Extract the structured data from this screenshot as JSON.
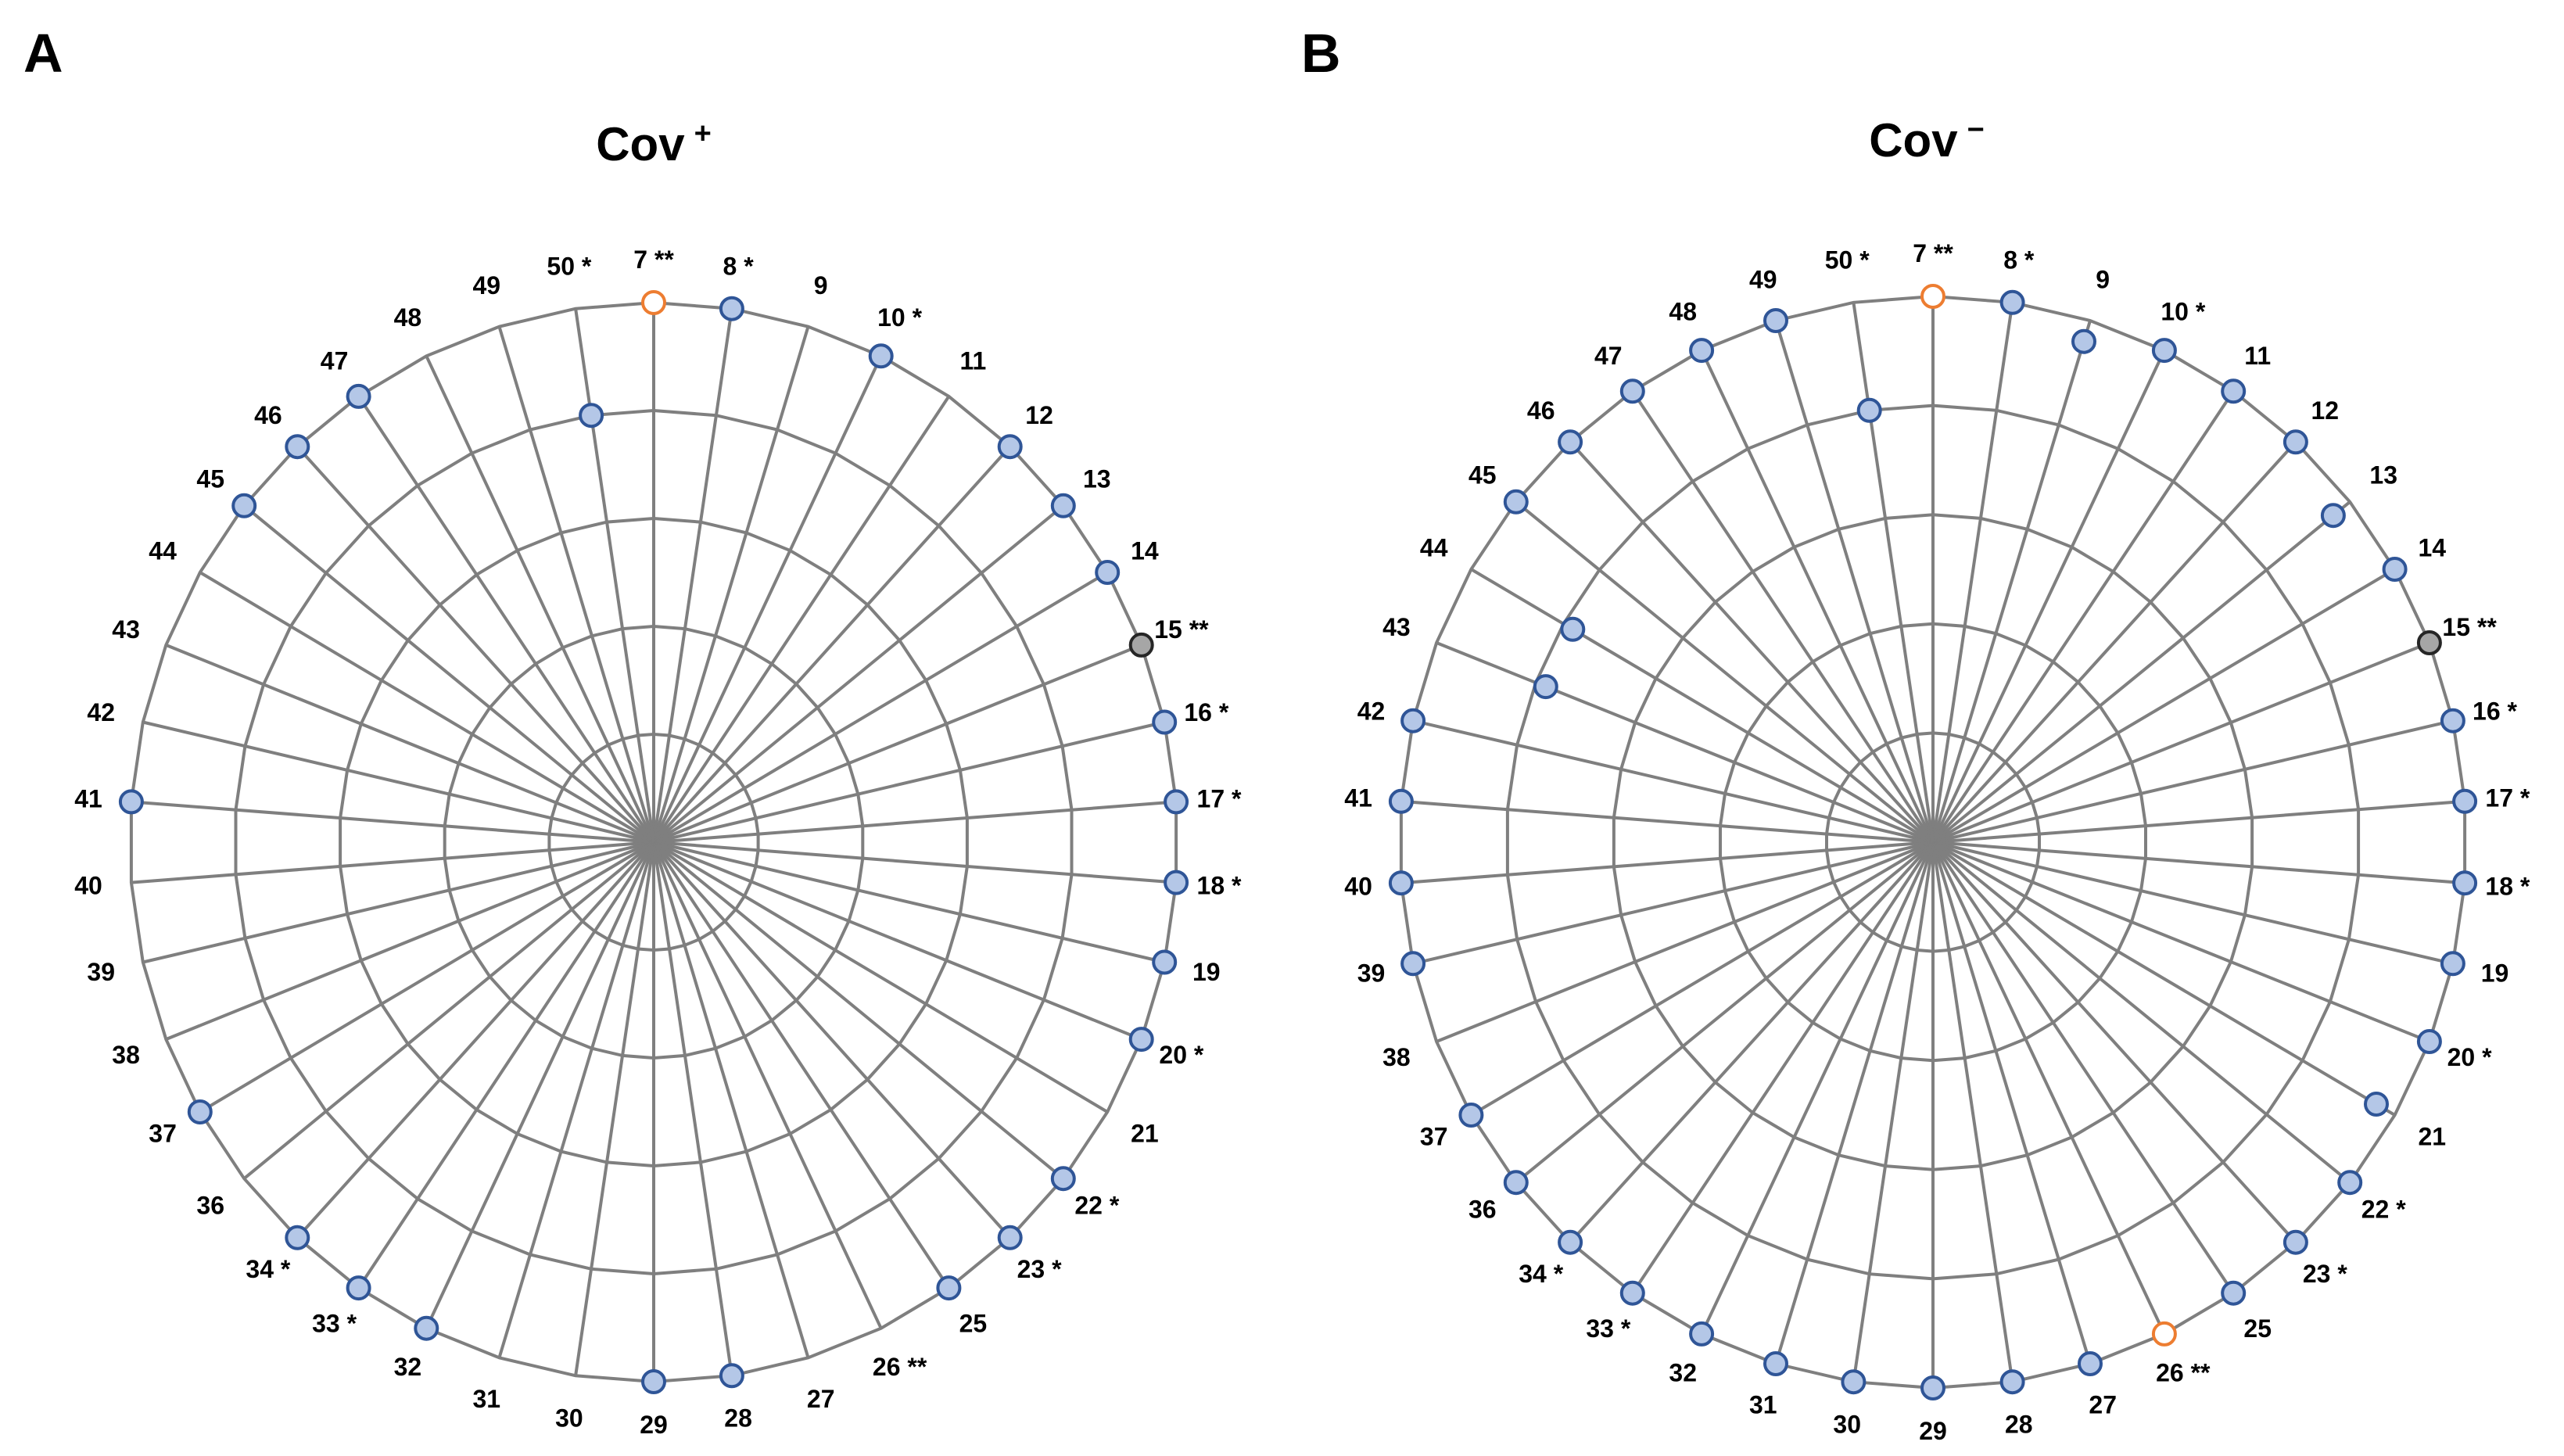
{
  "colors": {
    "grid": "#7f7f7f",
    "blue_fill": "#b4c7e7",
    "blue_stroke": "#2f5597",
    "orange_fill": "#ffffff",
    "orange_stroke": "#ed7d31",
    "gray_fill": "#a6a6a6",
    "gray_stroke": "#262626"
  },
  "chart_data": [
    {
      "type": "radar",
      "panel": "A",
      "title": "Cov",
      "title_sup": "+",
      "axis_order_clockwise_from_top": [
        "7",
        "8",
        "9",
        "10",
        "11",
        "12",
        "13",
        "14",
        "15",
        "16",
        "17",
        "18",
        "19",
        "20",
        "21",
        "22",
        "23",
        "25",
        "26",
        "27",
        "28",
        "29",
        "30",
        "31",
        "32",
        "33",
        "34",
        "36",
        "37",
        "38",
        "39",
        "40",
        "41",
        "42",
        "43",
        "44",
        "45",
        "46",
        "47",
        "48",
        "49",
        "50"
      ],
      "axis_labels": [
        "7 **",
        "8 *",
        "9",
        "10 *",
        "11",
        "12",
        "13",
        "14",
        "15 **",
        "16 *",
        "17 *",
        "18 *",
        "19",
        "20 *",
        "21",
        "22 *",
        "23 *",
        "25",
        "26 **",
        "27",
        "28",
        "29",
        "30",
        "31",
        "32",
        "33 *",
        "34 *",
        "36",
        "37",
        "38",
        "39",
        "40",
        "41",
        "42",
        "43",
        "44",
        "45",
        "46",
        "47",
        "48",
        "49",
        "50 *"
      ],
      "rlim": [
        0,
        5
      ],
      "rings": [
        1,
        2,
        3,
        4,
        5
      ],
      "points": [
        {
          "axis": "7",
          "value": 5,
          "color": "orange"
        },
        {
          "axis": "8",
          "value": 5,
          "color": "blue"
        },
        {
          "axis": "10",
          "value": 5,
          "color": "blue"
        },
        {
          "axis": "12",
          "value": 5,
          "color": "blue"
        },
        {
          "axis": "13",
          "value": 5,
          "color": "blue"
        },
        {
          "axis": "14",
          "value": 5,
          "color": "blue"
        },
        {
          "axis": "15",
          "value": 5,
          "color": "gray"
        },
        {
          "axis": "16",
          "value": 5,
          "color": "blue"
        },
        {
          "axis": "17",
          "value": 5,
          "color": "blue"
        },
        {
          "axis": "18",
          "value": 5,
          "color": "blue"
        },
        {
          "axis": "19",
          "value": 5,
          "color": "blue"
        },
        {
          "axis": "20",
          "value": 5,
          "color": "blue"
        },
        {
          "axis": "22",
          "value": 5,
          "color": "blue"
        },
        {
          "axis": "23",
          "value": 5,
          "color": "blue"
        },
        {
          "axis": "25",
          "value": 5,
          "color": "blue"
        },
        {
          "axis": "28",
          "value": 5,
          "color": "blue"
        },
        {
          "axis": "29",
          "value": 5,
          "color": "blue"
        },
        {
          "axis": "32",
          "value": 5,
          "color": "blue"
        },
        {
          "axis": "33",
          "value": 5,
          "color": "blue"
        },
        {
          "axis": "34",
          "value": 5,
          "color": "blue"
        },
        {
          "axis": "37",
          "value": 5,
          "color": "blue"
        },
        {
          "axis": "41",
          "value": 5,
          "color": "blue"
        },
        {
          "axis": "45",
          "value": 5,
          "color": "blue"
        },
        {
          "axis": "46",
          "value": 5,
          "color": "blue"
        },
        {
          "axis": "47",
          "value": 5,
          "color": "blue"
        },
        {
          "axis": "50",
          "value": 4,
          "color": "blue"
        }
      ]
    },
    {
      "type": "radar",
      "panel": "B",
      "title": "Cov",
      "title_sup": "−",
      "axis_order_clockwise_from_top": [
        "7",
        "8",
        "9",
        "10",
        "11",
        "12",
        "13",
        "14",
        "15",
        "16",
        "17",
        "18",
        "19",
        "20",
        "21",
        "22",
        "23",
        "25",
        "26",
        "27",
        "28",
        "29",
        "30",
        "31",
        "32",
        "33",
        "34",
        "36",
        "37",
        "38",
        "39",
        "40",
        "41",
        "42",
        "43",
        "44",
        "45",
        "46",
        "47",
        "48",
        "49",
        "50"
      ],
      "axis_labels": [
        "7 **",
        "8 *",
        "9",
        "10 *",
        "11",
        "12",
        "13",
        "14",
        "15 **",
        "16 *",
        "17 *",
        "18 *",
        "19",
        "20 *",
        "21",
        "22 *",
        "23 *",
        "25",
        "26 **",
        "27",
        "28",
        "29",
        "30",
        "31",
        "32",
        "33 *",
        "34 *",
        "36",
        "37",
        "38",
        "39",
        "40",
        "41",
        "42",
        "43",
        "44",
        "45",
        "46",
        "47",
        "48",
        "49",
        "50 *"
      ],
      "rlim": [
        0,
        5
      ],
      "rings": [
        1,
        2,
        3,
        4,
        5
      ],
      "points": [
        {
          "axis": "7",
          "value": 5,
          "color": "orange"
        },
        {
          "axis": "8",
          "value": 5,
          "color": "blue"
        },
        {
          "axis": "9",
          "value": 4.8,
          "color": "blue"
        },
        {
          "axis": "10",
          "value": 5,
          "color": "blue"
        },
        {
          "axis": "11",
          "value": 5,
          "color": "blue"
        },
        {
          "axis": "12",
          "value": 5,
          "color": "blue"
        },
        {
          "axis": "13",
          "value": 4.8,
          "color": "blue"
        },
        {
          "axis": "14",
          "value": 5,
          "color": "blue"
        },
        {
          "axis": "15",
          "value": 5,
          "color": "gray"
        },
        {
          "axis": "16",
          "value": 5,
          "color": "blue"
        },
        {
          "axis": "17",
          "value": 5,
          "color": "blue"
        },
        {
          "axis": "18",
          "value": 5,
          "color": "blue"
        },
        {
          "axis": "19",
          "value": 5,
          "color": "blue"
        },
        {
          "axis": "20",
          "value": 5,
          "color": "blue"
        },
        {
          "axis": "21",
          "value": 4.8,
          "color": "blue"
        },
        {
          "axis": "22",
          "value": 5,
          "color": "blue"
        },
        {
          "axis": "23",
          "value": 5,
          "color": "blue"
        },
        {
          "axis": "25",
          "value": 5,
          "color": "blue"
        },
        {
          "axis": "26",
          "value": 5,
          "color": "orange"
        },
        {
          "axis": "27",
          "value": 5,
          "color": "blue"
        },
        {
          "axis": "28",
          "value": 5,
          "color": "blue"
        },
        {
          "axis": "29",
          "value": 5,
          "color": "blue"
        },
        {
          "axis": "30",
          "value": 5,
          "color": "blue"
        },
        {
          "axis": "31",
          "value": 5,
          "color": "blue"
        },
        {
          "axis": "32",
          "value": 5,
          "color": "blue"
        },
        {
          "axis": "33",
          "value": 5,
          "color": "blue"
        },
        {
          "axis": "34",
          "value": 5,
          "color": "blue"
        },
        {
          "axis": "36",
          "value": 5,
          "color": "blue"
        },
        {
          "axis": "37",
          "value": 5,
          "color": "blue"
        },
        {
          "axis": "39",
          "value": 5,
          "color": "blue"
        },
        {
          "axis": "40",
          "value": 5,
          "color": "blue"
        },
        {
          "axis": "41",
          "value": 5,
          "color": "blue"
        },
        {
          "axis": "42",
          "value": 5,
          "color": "blue"
        },
        {
          "axis": "43",
          "value": 3.9,
          "color": "blue"
        },
        {
          "axis": "44",
          "value": 3.9,
          "color": "blue"
        },
        {
          "axis": "45",
          "value": 5,
          "color": "blue"
        },
        {
          "axis": "46",
          "value": 5,
          "color": "blue"
        },
        {
          "axis": "47",
          "value": 5,
          "color": "blue"
        },
        {
          "axis": "48",
          "value": 5,
          "color": "blue"
        },
        {
          "axis": "49",
          "value": 5,
          "color": "blue"
        },
        {
          "axis": "50",
          "value": 4,
          "color": "blue"
        }
      ]
    }
  ]
}
